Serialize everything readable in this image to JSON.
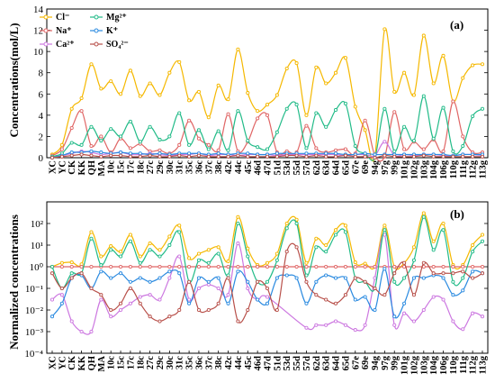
{
  "chart_data": [
    {
      "type": "line",
      "panel_label": "(a)",
      "ylabel": "Concentrations(mol/L)",
      "xlabel": "",
      "ylim": [
        0,
        14
      ],
      "yticks": [
        0,
        2,
        4,
        6,
        8,
        10,
        12,
        14
      ],
      "yscale": "linear",
      "legend_position": "top-left",
      "categories": [
        "XC",
        "YC",
        "CK",
        "KK",
        "QH",
        "MA",
        "10c",
        "15c",
        "17c",
        "18c",
        "27c",
        "29c",
        "30c",
        "31c",
        "35c",
        "36c",
        "37c",
        "38c",
        "42c",
        "44c",
        "45c",
        "46d",
        "47d",
        "51d",
        "53d",
        "55d",
        "57d",
        "62d",
        "63d",
        "64d",
        "65d",
        "67e",
        "69e",
        "94g",
        "97g",
        "99g",
        "101g",
        "102g",
        "103g",
        "104g",
        "106g",
        "110g",
        "111g",
        "112g",
        "113g"
      ],
      "series": [
        {
          "name": "Cl⁻",
          "color": "#f5b800",
          "values": [
            0.3,
            1.2,
            4.6,
            5.6,
            8.8,
            6.5,
            7.2,
            6.0,
            8.2,
            5.8,
            7.0,
            5.9,
            8.0,
            9.0,
            5.4,
            6.2,
            3.8,
            6.8,
            5.5,
            10.2,
            6.1,
            4.4,
            5.0,
            5.9,
            8.4,
            8.9,
            4.0,
            8.5,
            7.0,
            8.0,
            9.4,
            4.8,
            2.6,
            0.1,
            12.1,
            6.2,
            8.0,
            5.9,
            11.5,
            7.0,
            9.6,
            5.3,
            7.5,
            8.7,
            8.8
          ]
        },
        {
          "name": "Na⁺",
          "color": "#e06666",
          "values": [
            0.2,
            0.8,
            2.8,
            4.4,
            1.1,
            2.0,
            0.5,
            1.8,
            0.9,
            1.3,
            0.6,
            0.7,
            0.4,
            1.2,
            3.5,
            1.8,
            1.2,
            0.7,
            4.1,
            0.6,
            1.5,
            3.7,
            4.0,
            0.5,
            0.6,
            0.5,
            3.0,
            0.9,
            0.5,
            0.7,
            0.8,
            0.4,
            3.5,
            0.2,
            0.1,
            4.3,
            0.8,
            1.5,
            0.8,
            1.7,
            0.6,
            5.3,
            2.0,
            0.5,
            0.5
          ]
        },
        {
          "name": "Ca²⁺",
          "color": "#cc77e0",
          "values": [
            0.1,
            0.2,
            0.4,
            0.6,
            0.5,
            0.3,
            0.4,
            0.5,
            0.3,
            0.3,
            0.4,
            0.3,
            0.2,
            0.3,
            0.3,
            0.4,
            0.2,
            0.3,
            0.3,
            0.2,
            0.3,
            0.3,
            0.3,
            0.2,
            0.3,
            0.3,
            0.3,
            0.3,
            0.3,
            0.3,
            0.2,
            0.3,
            0.3,
            0.2,
            1.5,
            0.2,
            0.3,
            0.2,
            0.3,
            0.3,
            0.2,
            0.2,
            0.3,
            0.3,
            0.2
          ]
        },
        {
          "name": "Mg²⁺",
          "color": "#22bb88",
          "values": [
            0.1,
            0.4,
            1.4,
            1.2,
            2.9,
            1.6,
            2.7,
            2.0,
            3.4,
            1.5,
            2.9,
            1.7,
            2.0,
            4.2,
            1.2,
            2.6,
            0.8,
            2.5,
            0.7,
            4.4,
            1.6,
            1.0,
            0.8,
            2.4,
            4.6,
            5.0,
            0.9,
            4.2,
            2.9,
            4.5,
            5.1,
            1.1,
            0.4,
            0.0,
            4.6,
            0.6,
            2.9,
            1.6,
            5.8,
            1.8,
            4.7,
            0.6,
            1.1,
            3.9,
            4.6
          ]
        },
        {
          "name": "K⁺",
          "color": "#2a8ae0",
          "values": [
            0.0,
            0.2,
            0.5,
            0.5,
            0.6,
            0.5,
            0.4,
            0.5,
            0.4,
            0.4,
            0.3,
            0.4,
            0.3,
            0.4,
            0.4,
            0.4,
            0.3,
            0.4,
            0.3,
            0.4,
            0.4,
            0.3,
            0.3,
            0.4,
            0.4,
            0.4,
            0.4,
            0.4,
            0.4,
            0.4,
            0.3,
            0.3,
            0.4,
            0.3,
            0.3,
            0.3,
            0.3,
            0.3,
            0.3,
            0.3,
            0.3,
            0.2,
            0.3,
            0.3,
            0.3
          ]
        },
        {
          "name": "SO₄²⁻",
          "color": "#b8504a",
          "values": [
            0.0,
            0.1,
            0.2,
            0.3,
            0.2,
            0.1,
            0.2,
            0.2,
            0.1,
            0.1,
            0.2,
            0.1,
            0.1,
            0.2,
            0.1,
            0.2,
            0.1,
            0.1,
            0.1,
            0.2,
            0.1,
            0.1,
            0.1,
            0.1,
            0.2,
            0.2,
            0.1,
            0.2,
            0.1,
            0.1,
            0.2,
            0.1,
            0.1,
            0.0,
            0.2,
            0.1,
            0.1,
            0.1,
            0.2,
            0.1,
            0.1,
            0.1,
            0.1,
            0.1,
            0.1
          ]
        }
      ]
    },
    {
      "type": "line",
      "panel_label": "(b)",
      "ylabel": "Normalized concentrations",
      "xlabel": "",
      "ylim": [
        0.0001,
        1000
      ],
      "yticks": [
        0.0001,
        0.001,
        0.01,
        0.1,
        1,
        10,
        100
      ],
      "ytick_labels": [
        "10⁻⁴",
        "10⁻³",
        "10⁻²",
        "10⁻¹",
        "10⁰",
        "10¹",
        "10²"
      ],
      "yscale": "log",
      "categories": [
        "XC",
        "YC",
        "CK",
        "KK",
        "QH",
        "MA",
        "10c",
        "15c",
        "17c",
        "18c",
        "27c",
        "29c",
        "30c",
        "31c",
        "35c",
        "36c",
        "37c",
        "38c",
        "42c",
        "44c",
        "45c",
        "46d",
        "47d",
        "51d",
        "53d",
        "55d",
        "57d",
        "62d",
        "63d",
        "64d",
        "65d",
        "67e",
        "69e",
        "94g",
        "97g",
        "99g",
        "101g",
        "102g",
        "103g",
        "104g",
        "106g",
        "110g",
        "111g",
        "112g",
        "113g"
      ],
      "series": [
        {
          "name": "Cl⁻",
          "color": "#f5b800",
          "values": [
            1.0,
            1.5,
            1.6,
            1.3,
            40,
            3,
            9,
            5,
            30,
            3,
            12,
            6,
            25,
            80,
            2.5,
            4,
            6,
            8,
            1.8,
            200,
            7,
            1.2,
            1.5,
            4,
            100,
            150,
            1.5,
            20,
            10,
            50,
            80,
            1.6,
            1.4,
            1.0,
            80,
            1.0,
            1.5,
            8,
            300,
            15,
            100,
            1.2,
            1.2,
            10,
            30
          ]
        },
        {
          "name": "Na⁺",
          "color": "#e06666",
          "values": [
            1,
            1,
            1,
            1,
            1,
            1,
            1,
            1,
            1,
            1,
            1,
            1,
            1,
            1,
            1,
            1,
            1,
            1,
            1,
            1,
            1,
            1,
            1,
            1,
            1,
            1,
            1,
            1,
            1,
            1,
            1,
            1,
            1,
            1,
            1,
            1,
            1,
            1,
            1,
            1,
            1,
            1,
            1,
            1,
            1
          ]
        },
        {
          "name": "Ca²⁺",
          "color": "#cc77e0",
          "values": [
            0.03,
            0.05,
            0.003,
            0.001,
            0.001,
            0.03,
            0.005,
            0.01,
            0.02,
            0.04,
            0.05,
            0.03,
            0.3,
            3,
            0.03,
            0.1,
            0.15,
            0.1,
            0.05,
            12,
            0.1,
            0.03,
            0.04,
            null,
            null,
            null,
            0.0015,
            0.002,
            0.002,
            0.003,
            0.002,
            0.0012,
            0.002,
            0.3,
            30,
            0.002,
            0.007,
            0.003,
            0.01,
            0.04,
            0.03,
            0.003,
            0.0013,
            0.007,
            0.005
          ]
        },
        {
          "name": "Mg²⁺",
          "color": "#22bb88",
          "values": [
            1.0,
            0.1,
            0.5,
            0.5,
            20,
            1.2,
            6,
            3,
            15,
            1.5,
            6,
            3,
            10,
            40,
            0.2,
            2,
            1.5,
            4,
            0.4,
            100,
            3,
            0.2,
            0.2,
            2,
            60,
            100,
            0.4,
            8,
            5,
            30,
            40,
            0.3,
            0.2,
            0.1,
            50,
            0.2,
            0.3,
            2,
            200,
            6,
            50,
            0.2,
            0.3,
            5,
            15
          ]
        },
        {
          "name": "K⁺",
          "color": "#2a8ae0",
          "values": [
            0.005,
            0.02,
            0.3,
            0.4,
            0.1,
            0.6,
            0.3,
            0.5,
            0.2,
            0.3,
            0.2,
            0.3,
            0.6,
            0.5,
            0.02,
            0.3,
            0.2,
            0.3,
            0.02,
            0.6,
            0.2,
            0.03,
            0.02,
            0.3,
            0.4,
            0.3,
            0.02,
            0.2,
            0.4,
            0.3,
            0.3,
            0.03,
            0.04,
            0.01,
            0.8,
            0.005,
            0.02,
            0.3,
            0.3,
            0.4,
            0.3,
            0.05,
            0.08,
            0.6,
            0.5
          ]
        },
        {
          "name": "SO₄²⁻",
          "color": "#b8504a",
          "values": [
            0.5,
            0.1,
            0.3,
            0.5,
            0.1,
            0.05,
            0.01,
            0.02,
            0.1,
            0.02,
            0.005,
            0.003,
            0.005,
            0.01,
            0.2,
            0.01,
            0.01,
            0.02,
            0.3,
            0.003,
            0.01,
            0.2,
            0.1,
            0.01,
            5,
            8,
            0.2,
            0.05,
            0.03,
            0.02,
            0.05,
            0.3,
            0.2,
            0.1,
            0.05,
            0.5,
            1.5,
            0.05,
            1.5,
            0.5,
            0.5,
            0.5,
            0.6,
            0.3,
            0.5
          ]
        }
      ]
    }
  ]
}
